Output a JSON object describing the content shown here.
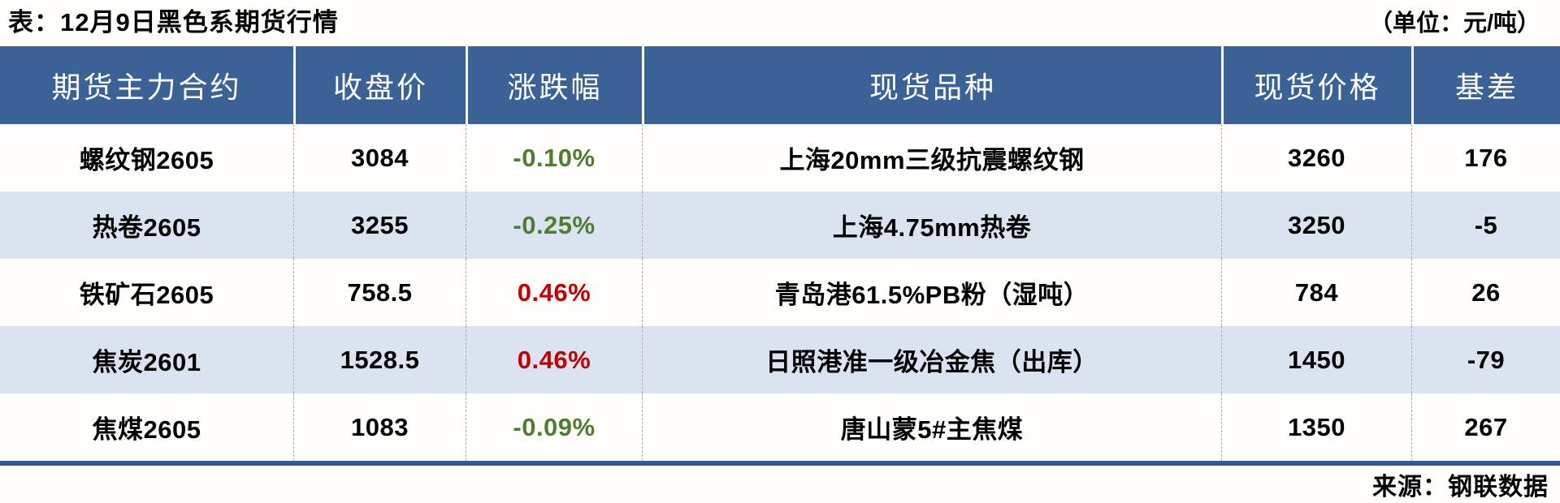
{
  "meta": {
    "title": "表：12月9日黑色系期货行情",
    "unit": "（单位：元/吨）",
    "source": "来源：钢联数据"
  },
  "colors": {
    "header_bg": "#3a6296",
    "row_alt_bg": "#dbe3f0",
    "row_bg": "#fffefa",
    "up_color": "#c00000",
    "down_color": "#4e7d32",
    "rule_color": "#2f5c93",
    "sep_color": "#aeaeae"
  },
  "table": {
    "columns": [
      {
        "key": "contract",
        "label": "期货主力合约"
      },
      {
        "key": "close",
        "label": "收盘价"
      },
      {
        "key": "change",
        "label": "涨跌幅"
      },
      {
        "key": "spot",
        "label": "现货品种"
      },
      {
        "key": "spot_price",
        "label": "现货价格"
      },
      {
        "key": "basis",
        "label": "基差"
      }
    ],
    "rows": [
      {
        "contract": "螺纹钢2605",
        "close": "3084",
        "change": "-0.10%",
        "change_color": "green",
        "spot": "上海20mm三级抗震螺纹钢",
        "spot_price": "3260",
        "basis": "176"
      },
      {
        "contract": "热卷2605",
        "close": "3255",
        "change": "-0.25%",
        "change_color": "green",
        "spot": "上海4.75mm热卷",
        "spot_price": "3250",
        "basis": "-5"
      },
      {
        "contract": "铁矿石2605",
        "close": "758.5",
        "change": "0.46%",
        "change_color": "red",
        "spot": "青岛港61.5%PB粉（湿吨）",
        "spot_price": "784",
        "basis": "26"
      },
      {
        "contract": "焦炭2601",
        "close": "1528.5",
        "change": "0.46%",
        "change_color": "red",
        "spot": "日照港准一级冶金焦（出库）",
        "spot_price": "1450",
        "basis": "-79"
      },
      {
        "contract": "焦煤2605",
        "close": "1083",
        "change": "-0.09%",
        "change_color": "green",
        "spot": "唐山蒙5#主焦煤",
        "spot_price": "1350",
        "basis": "267"
      }
    ]
  }
}
